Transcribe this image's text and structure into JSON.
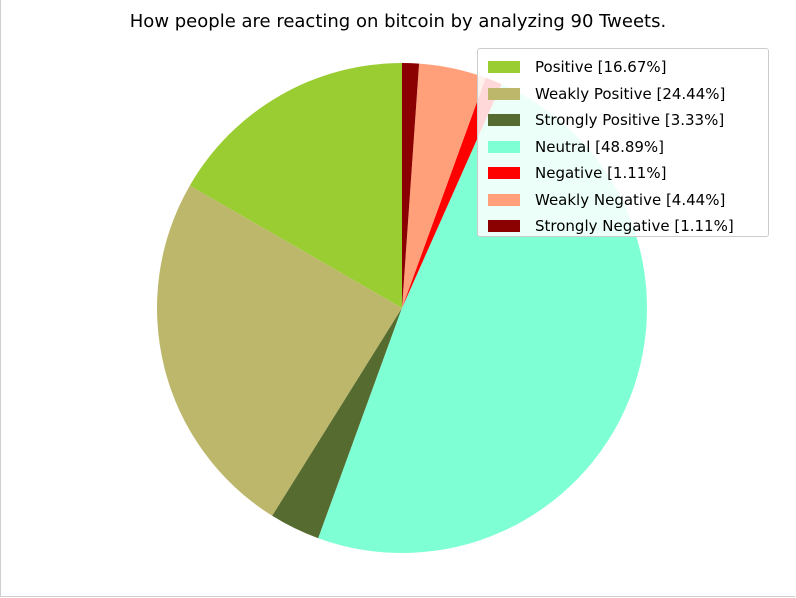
{
  "chart_data": {
    "type": "pie",
    "title": "How people are reacting on bitcoin by analyzing 90 Tweets.",
    "slices": [
      {
        "label": "Positive [16.67%]",
        "value": 16.67,
        "color": "#9acd32"
      },
      {
        "label": "Weakly Positive [24.44%]",
        "value": 24.44,
        "color": "#bdb76b"
      },
      {
        "label": "Strongly Positive [3.33%]",
        "value": 3.33,
        "color": "#556b2f"
      },
      {
        "label": "Neutral [48.89%]",
        "value": 48.89,
        "color": "#7fffd4"
      },
      {
        "label": "Negative [1.11%]",
        "value": 1.11,
        "color": "#ff0000"
      },
      {
        "label": "Weakly Negative [4.44%]",
        "value": 4.44,
        "color": "#ffa07a"
      },
      {
        "label": "Strongly Negative [1.11%]",
        "value": 1.11,
        "color": "#8b0000"
      }
    ],
    "start_angle_deg": 90,
    "direction": "counterclockwise",
    "legend_position": "upper-right"
  }
}
